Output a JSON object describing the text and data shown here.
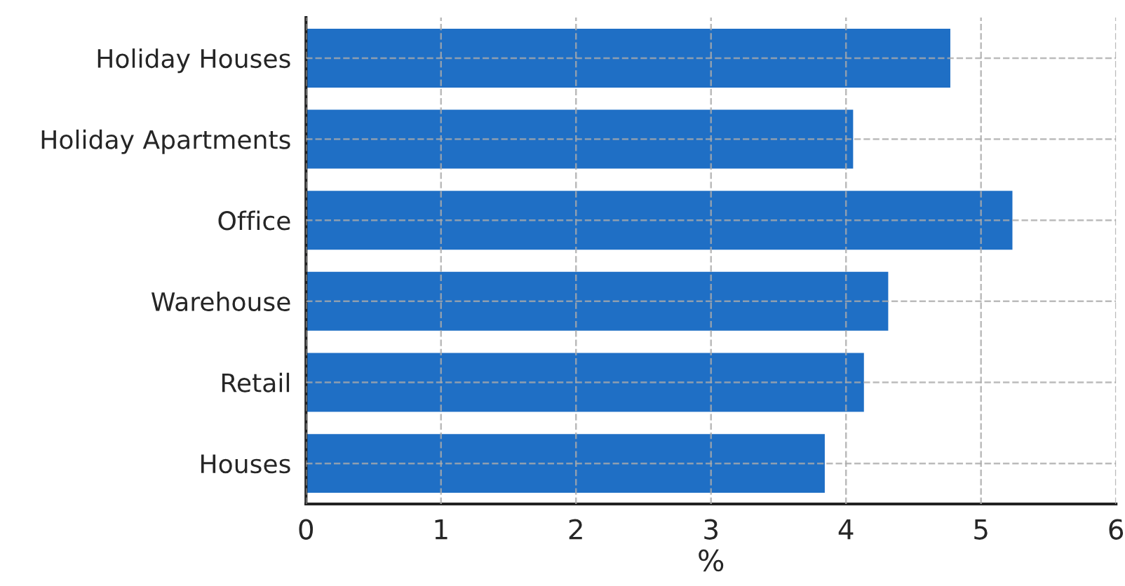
{
  "chart_data": {
    "type": "bar",
    "orientation": "horizontal",
    "xlabel": "%",
    "categories": [
      "Holiday Houses",
      "Holiday Apartments",
      "Office",
      "Warehouse",
      "Retail",
      "Houses"
    ],
    "values": [
      4.78,
      4.06,
      5.24,
      4.32,
      4.14,
      3.85
    ],
    "color": "#1f6fc5",
    "xlim": [
      0,
      6
    ],
    "xticks": [
      0,
      1,
      2,
      3,
      4,
      5,
      6
    ],
    "grid": true
  }
}
